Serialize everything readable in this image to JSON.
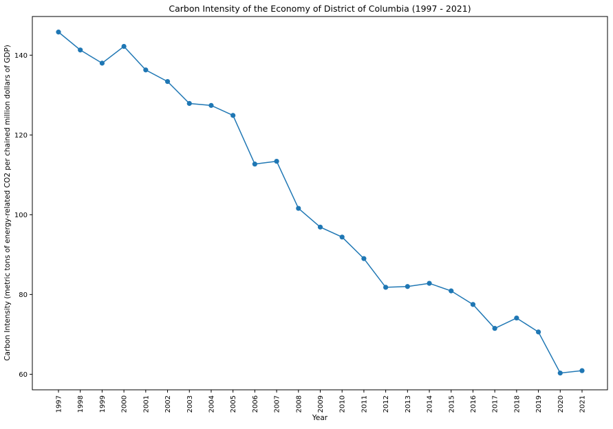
{
  "chart_data": {
    "type": "line",
    "title": "Carbon Intensity of the Economy of District of Columbia (1997 - 2021)",
    "xlabel": "Year",
    "ylabel": "Carbon Intensity (metric tons of energy-related CO2 per chained million dollars of GDP)",
    "categories": [
      "1997",
      "1998",
      "1999",
      "2000",
      "2001",
      "2002",
      "2003",
      "2004",
      "2005",
      "2006",
      "2007",
      "2008",
      "2009",
      "2010",
      "2011",
      "2012",
      "2013",
      "2014",
      "2015",
      "2016",
      "2017",
      "2018",
      "2019",
      "2020",
      "2021"
    ],
    "series": [
      {
        "values": [
          145.8,
          141.3,
          138.0,
          142.2,
          136.3,
          133.4,
          127.9,
          127.4,
          124.9,
          112.7,
          113.4,
          101.6,
          96.9,
          94.4,
          89.0,
          81.8,
          82.0,
          82.8,
          80.9,
          77.5,
          71.5,
          74.1,
          70.6,
          60.3,
          60.9
        ]
      }
    ],
    "yticks": [
      60,
      80,
      100,
      120,
      140
    ],
    "ylim": [
      56.1,
      149.7
    ],
    "grid": false,
    "legend": "none",
    "colors": {
      "line": "#1f77b4",
      "marker": "#1f77b4",
      "axes": "#000000",
      "background": "#ffffff"
    }
  }
}
